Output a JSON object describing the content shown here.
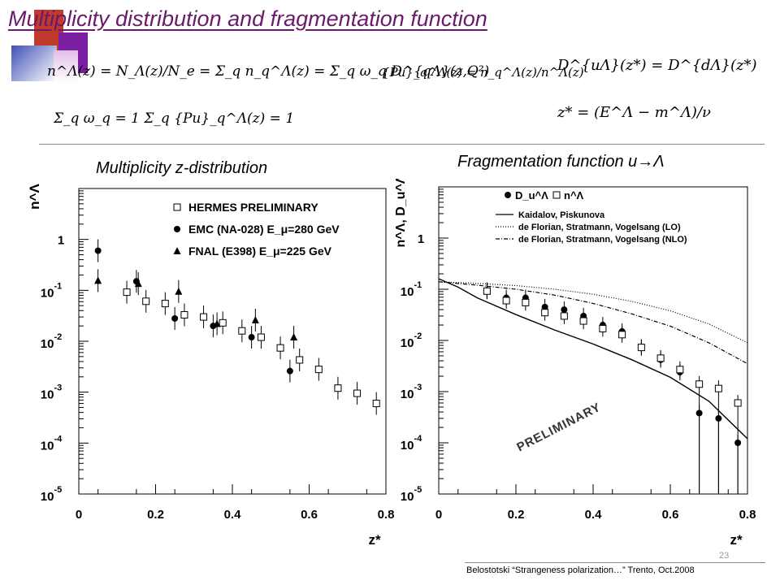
{
  "slide": {
    "title": "Multiplicity distribution and fragmentation function",
    "formula1": "n^Λ(z) = N_Λ(z)/N_e = Σ_q n_q^Λ(z) = Σ_q ω_q D^{qΛ}(z,Q²)",
    "formula2": "{Pu}_q^Λ(z) = n_q^Λ(z)/n^Λ(z)",
    "formula3": "D^{uΛ}(z*) = D^{dΛ}(z*)",
    "formula4": "z* = (E^Λ − m^Λ)/ν",
    "formula5": "Σ_q ω_q = 1    Σ_q {Pu}_q^Λ(z) = 1",
    "left_subtitle": "Multiplicity  z-distribution",
    "right_subtitle": "Fragmentation function u→Λ",
    "page_number": "23",
    "footer": "Belostotski  “Strangeness polarization…”  Trento, Oct.2008"
  },
  "chart_data": [
    {
      "type": "scatter",
      "title": "",
      "xlabel": "z*",
      "ylabel": "n^Λ",
      "xlim": [
        0,
        0.8
      ],
      "ylim": [
        1e-05,
        10
      ],
      "yscale": "log",
      "xticks": [
        "0",
        "0.2",
        "0.4",
        "0.6",
        "0.8"
      ],
      "yticks": [
        "1",
        "10^-1",
        "10^-2",
        "10^-3",
        "10^-4",
        "10^-5"
      ],
      "legend_position": "top-right",
      "series": [
        {
          "name": "HERMES PRELIMINARY",
          "marker": "open-square",
          "x": [
            0.125,
            0.175,
            0.225,
            0.275,
            0.325,
            0.375,
            0.425,
            0.475,
            0.525,
            0.575,
            0.625,
            0.675,
            0.725,
            0.775
          ],
          "y": [
            0.092,
            0.061,
            0.055,
            0.033,
            0.03,
            0.023,
            0.016,
            0.012,
            0.0074,
            0.0043,
            0.0028,
            0.0012,
            0.00095,
            0.0006
          ]
        },
        {
          "name": "EMC (NA-028) E_μ=280 GeV",
          "marker": "filled-circle",
          "x": [
            0.05,
            0.15,
            0.25,
            0.35,
            0.45,
            0.55
          ],
          "y": [
            0.6,
            0.15,
            0.028,
            0.02,
            0.012,
            0.0026
          ]
        },
        {
          "name": "FNAL (E398)  E_μ=225 GeV",
          "marker": "filled-triangle",
          "x": [
            0.05,
            0.155,
            0.26,
            0.36,
            0.46,
            0.56
          ],
          "y": [
            0.155,
            0.135,
            0.095,
            0.022,
            0.026,
            0.012
          ]
        }
      ]
    },
    {
      "type": "line",
      "title": "",
      "xlabel": "z*",
      "ylabel": "n^Λ, D_u^Λ",
      "xlim": [
        0,
        0.8
      ],
      "ylim": [
        1e-05,
        10
      ],
      "yscale": "log",
      "xticks": [
        "0",
        "0.2",
        "0.4",
        "0.6",
        "0.8"
      ],
      "yticks": [
        "1",
        "10^-1",
        "10^-2",
        "10^-3",
        "10^-4",
        "10^-5"
      ],
      "legend_position": "top-left",
      "annotation": "PRELIMINARY",
      "series": [
        {
          "name": "D_u^Λ",
          "marker": "filled-circle",
          "x": [
            0.125,
            0.175,
            0.225,
            0.275,
            0.325,
            0.375,
            0.425,
            0.475,
            0.525,
            0.575,
            0.625,
            0.675,
            0.725,
            0.775
          ],
          "y": [
            0.095,
            0.068,
            0.068,
            0.045,
            0.04,
            0.03,
            0.02,
            0.015,
            0.0073,
            0.0042,
            0.0024,
            0.00038,
            0.0003,
            0.0001
          ]
        },
        {
          "name": "n^Λ",
          "marker": "open-square",
          "x": [
            0.125,
            0.175,
            0.225,
            0.275,
            0.325,
            0.375,
            0.425,
            0.475,
            0.525,
            0.575,
            0.625,
            0.675,
            0.725,
            0.775
          ],
          "y": [
            0.092,
            0.06,
            0.055,
            0.035,
            0.03,
            0.024,
            0.017,
            0.013,
            0.0073,
            0.0045,
            0.0027,
            0.0014,
            0.00115,
            0.0006
          ]
        },
        {
          "name": "Kaidalov, Piskunova",
          "style": "solid",
          "x": [
            0.0,
            0.05,
            0.1,
            0.2,
            0.3,
            0.4,
            0.5,
            0.6,
            0.7,
            0.8
          ],
          "y": [
            0.16,
            0.11,
            0.068,
            0.032,
            0.016,
            0.0085,
            0.0042,
            0.0019,
            0.00065,
            0.00012
          ]
        },
        {
          "name": "de Florian, Stratmann, Vogelsang (LO)",
          "style": "dotted",
          "x": [
            0.0,
            0.1,
            0.2,
            0.3,
            0.4,
            0.5,
            0.6,
            0.7,
            0.8
          ],
          "y": [
            0.14,
            0.13,
            0.118,
            0.1,
            0.08,
            0.058,
            0.038,
            0.021,
            0.009
          ]
        },
        {
          "name": "de Florian, Stratmann, Vogelsang (NLO)",
          "style": "dash-dot",
          "x": [
            0.0,
            0.1,
            0.2,
            0.3,
            0.4,
            0.5,
            0.6,
            0.7,
            0.8
          ],
          "y": [
            0.14,
            0.12,
            0.1,
            0.077,
            0.053,
            0.033,
            0.019,
            0.009,
            0.0035
          ]
        }
      ]
    }
  ]
}
